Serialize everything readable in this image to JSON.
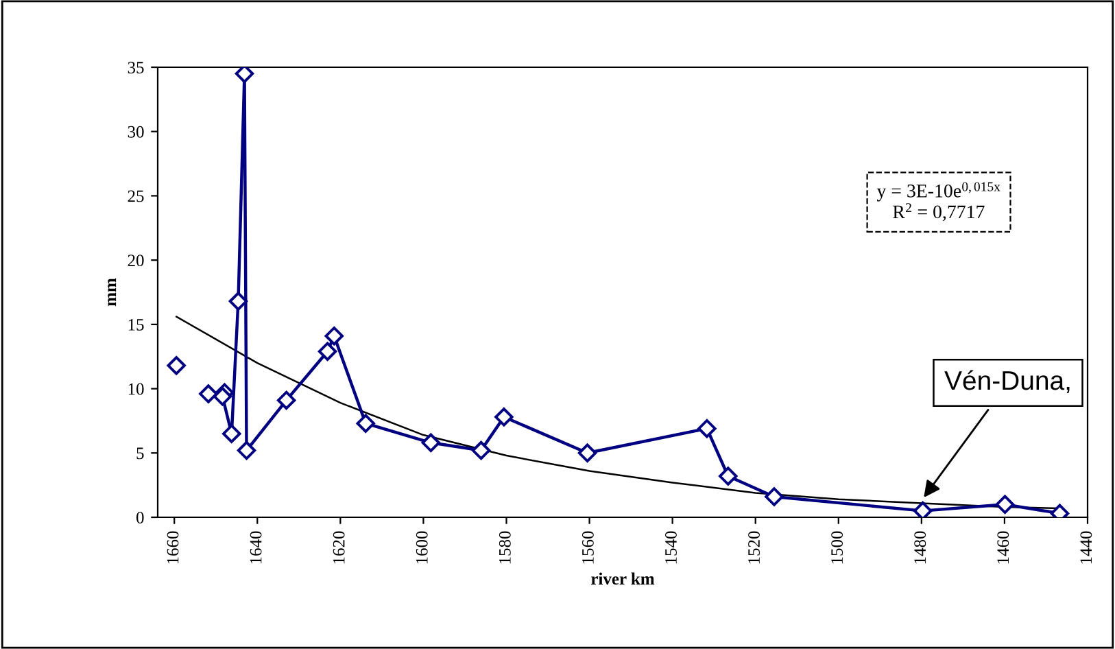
{
  "chart_data": {
    "type": "line",
    "xlabel": "river km",
    "ylabel": "mm",
    "xlim": [
      1664,
      1440
    ],
    "xticks": [
      1660,
      1640,
      1620,
      1600,
      1580,
      1560,
      1540,
      1520,
      1500,
      1480,
      1460,
      1440
    ],
    "ylim": [
      0,
      35
    ],
    "yticks": [
      0,
      5,
      10,
      15,
      20,
      25,
      30,
      35
    ],
    "marker": "diamond",
    "series": [
      {
        "type": "scatter",
        "color": "#000080",
        "x": [
          1659.5,
          1651.8
        ],
        "values": [
          11.8,
          9.6
        ]
      },
      {
        "color": "#000080",
        "x": [
          1647.9,
          1648.4,
          1646.2,
          1644.6,
          1643.1,
          1642.6,
          1633.0,
          1623.1,
          1621.5,
          1613.9,
          1598.2,
          1586.1,
          1580.6,
          1560.5,
          1531.7,
          1526.6,
          1515.5,
          1479.7,
          1459.9,
          1446.7
        ],
        "values": [
          9.7,
          9.4,
          6.5,
          16.8,
          34.5,
          5.2,
          9.1,
          12.9,
          14.1,
          7.3,
          5.8,
          5.2,
          7.8,
          5.0,
          6.9,
          3.2,
          1.6,
          0.5,
          1.0,
          0.3
        ]
      },
      {
        "type": "line",
        "color": "#000000",
        "marker": "none",
        "x": [
          1659.5,
          1640,
          1620,
          1600,
          1580,
          1560,
          1540,
          1520,
          1500,
          1480,
          1460,
          1446.7
        ],
        "values": [
          15.6,
          12.0,
          8.9,
          6.4,
          4.8,
          3.6,
          2.7,
          1.9,
          1.4,
          1.1,
          0.8,
          0.7
        ]
      }
    ],
    "annotations": [
      "y = 3E-10e$^{0,015x}$",
      "R$^{2}$ = 0,7717",
      {
        "text": "Vén-Duna,",
        "x": 1480,
        "y": 1.3
      }
    ]
  }
}
